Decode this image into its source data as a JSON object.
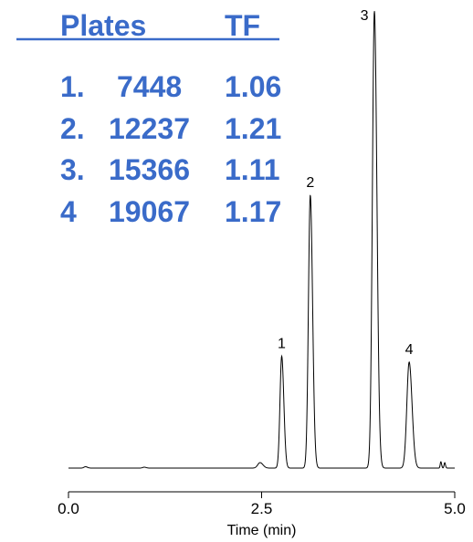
{
  "chart_data": {
    "type": "line",
    "xlabel": "Time (min)",
    "xlim": [
      0.0,
      5.0
    ],
    "ylim": [
      0,
      1
    ],
    "x_ticks": [
      {
        "value": 0.0,
        "label": "0.0"
      },
      {
        "value": 2.5,
        "label": "2.5"
      },
      {
        "value": 5.0,
        "label": "5.0"
      }
    ],
    "grid": false,
    "line_color": "#000000",
    "table_color": "#3a6bc9",
    "baseline": 0.0,
    "peaks": [
      {
        "label": "1",
        "time": 2.76,
        "height": 0.245,
        "sigma": 0.022
      },
      {
        "label": "2",
        "time": 3.13,
        "height": 0.597,
        "sigma": 0.024
      },
      {
        "label": "3",
        "time": 3.96,
        "height": 1.0,
        "sigma": 0.026
      },
      {
        "label": "4",
        "time": 4.41,
        "height": 0.232,
        "sigma": 0.03
      }
    ],
    "minor_peaks": [
      {
        "time": 0.22,
        "height": 0.003,
        "sigma": 0.02
      },
      {
        "time": 0.98,
        "height": 0.002,
        "sigma": 0.02
      },
      {
        "time": 2.48,
        "height": 0.012,
        "sigma": 0.03
      },
      {
        "time": 4.82,
        "height": 0.014,
        "sigma": 0.008
      },
      {
        "time": 4.87,
        "height": 0.012,
        "sigma": 0.008
      }
    ],
    "table": {
      "headers": [
        "Plates",
        "TF"
      ],
      "rows": [
        {
          "peak": "1.",
          "plates": "7448",
          "tf": "1.06"
        },
        {
          "peak": "2.",
          "plates": "12237",
          "tf": "1.21"
        },
        {
          "peak": "3.",
          "plates": "15366",
          "tf": "1.11"
        },
        {
          "peak": "4",
          "plates": "19067",
          "tf": "1.17"
        }
      ]
    }
  }
}
